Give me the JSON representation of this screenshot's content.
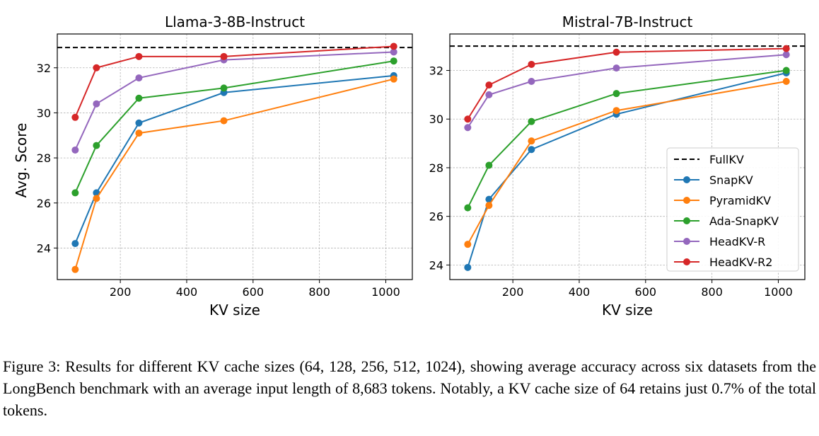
{
  "chart_data": [
    {
      "type": "line",
      "title": "Llama-3-8B-Instruct",
      "xlabel": "KV size",
      "ylabel": "Avg. Score",
      "x": [
        64,
        128,
        256,
        512,
        1024
      ],
      "xlim": [
        10,
        1080
      ],
      "ylim": [
        22.6,
        33.5
      ],
      "xticks": [
        200,
        400,
        600,
        800,
        1000
      ],
      "yticks": [
        24,
        26,
        28,
        30,
        32
      ],
      "xtick_labels": [
        "200",
        "400",
        "600",
        "800",
        "1000"
      ],
      "ytick_labels": [
        "24",
        "26",
        "28",
        "30",
        "32"
      ],
      "grid": true,
      "reference": {
        "name": "FullKV",
        "value": 32.9,
        "color": "#000000"
      },
      "series": [
        {
          "name": "SnapKV",
          "color": "#1f77b4",
          "values": [
            24.2,
            26.45,
            29.55,
            30.9,
            31.65
          ]
        },
        {
          "name": "PyramidKV",
          "color": "#ff7f0e",
          "values": [
            23.05,
            26.2,
            29.1,
            29.65,
            31.5
          ]
        },
        {
          "name": "Ada-SnapKV",
          "color": "#2ca02c",
          "values": [
            26.45,
            28.55,
            30.65,
            31.1,
            32.3
          ]
        },
        {
          "name": "HeadKV-R",
          "color": "#9467bd",
          "values": [
            28.35,
            30.4,
            31.55,
            32.35,
            32.7
          ]
        },
        {
          "name": "HeadKV-R2",
          "color": "#d62728",
          "values": [
            29.8,
            32.0,
            32.5,
            32.5,
            32.95
          ]
        }
      ]
    },
    {
      "type": "line",
      "title": "Mistral-7B-Instruct",
      "xlabel": "KV size",
      "ylabel": "",
      "x": [
        64,
        128,
        256,
        512,
        1024
      ],
      "xlim": [
        10,
        1080
      ],
      "ylim": [
        23.4,
        33.5
      ],
      "xticks": [
        200,
        400,
        600,
        800,
        1000
      ],
      "yticks": [
        24,
        26,
        28,
        30,
        32
      ],
      "xtick_labels": [
        "200",
        "400",
        "600",
        "800",
        "1000"
      ],
      "ytick_labels": [
        "24",
        "26",
        "28",
        "30",
        "32"
      ],
      "grid": true,
      "legend": "lower-right",
      "reference": {
        "name": "FullKV",
        "value": 33.0,
        "color": "#000000"
      },
      "series": [
        {
          "name": "SnapKV",
          "color": "#1f77b4",
          "values": [
            23.9,
            26.7,
            28.75,
            30.2,
            31.9
          ]
        },
        {
          "name": "PyramidKV",
          "color": "#ff7f0e",
          "values": [
            24.85,
            26.45,
            29.1,
            30.35,
            31.55
          ]
        },
        {
          "name": "Ada-SnapKV",
          "color": "#2ca02c",
          "values": [
            26.35,
            28.1,
            29.9,
            31.05,
            32.0
          ]
        },
        {
          "name": "HeadKV-R",
          "color": "#9467bd",
          "values": [
            29.65,
            31.0,
            31.55,
            32.1,
            32.65
          ]
        },
        {
          "name": "HeadKV-R2",
          "color": "#d62728",
          "values": [
            30.0,
            31.4,
            32.25,
            32.75,
            32.9
          ]
        }
      ]
    }
  ],
  "caption": "Figure 3: Results for different KV cache sizes (64, 128, 256, 512, 1024), showing average accuracy across six datasets from the LongBench benchmark with an average input length of 8,683 tokens. Notably, a KV cache size of 64 retains just 0.7% of the total tokens."
}
